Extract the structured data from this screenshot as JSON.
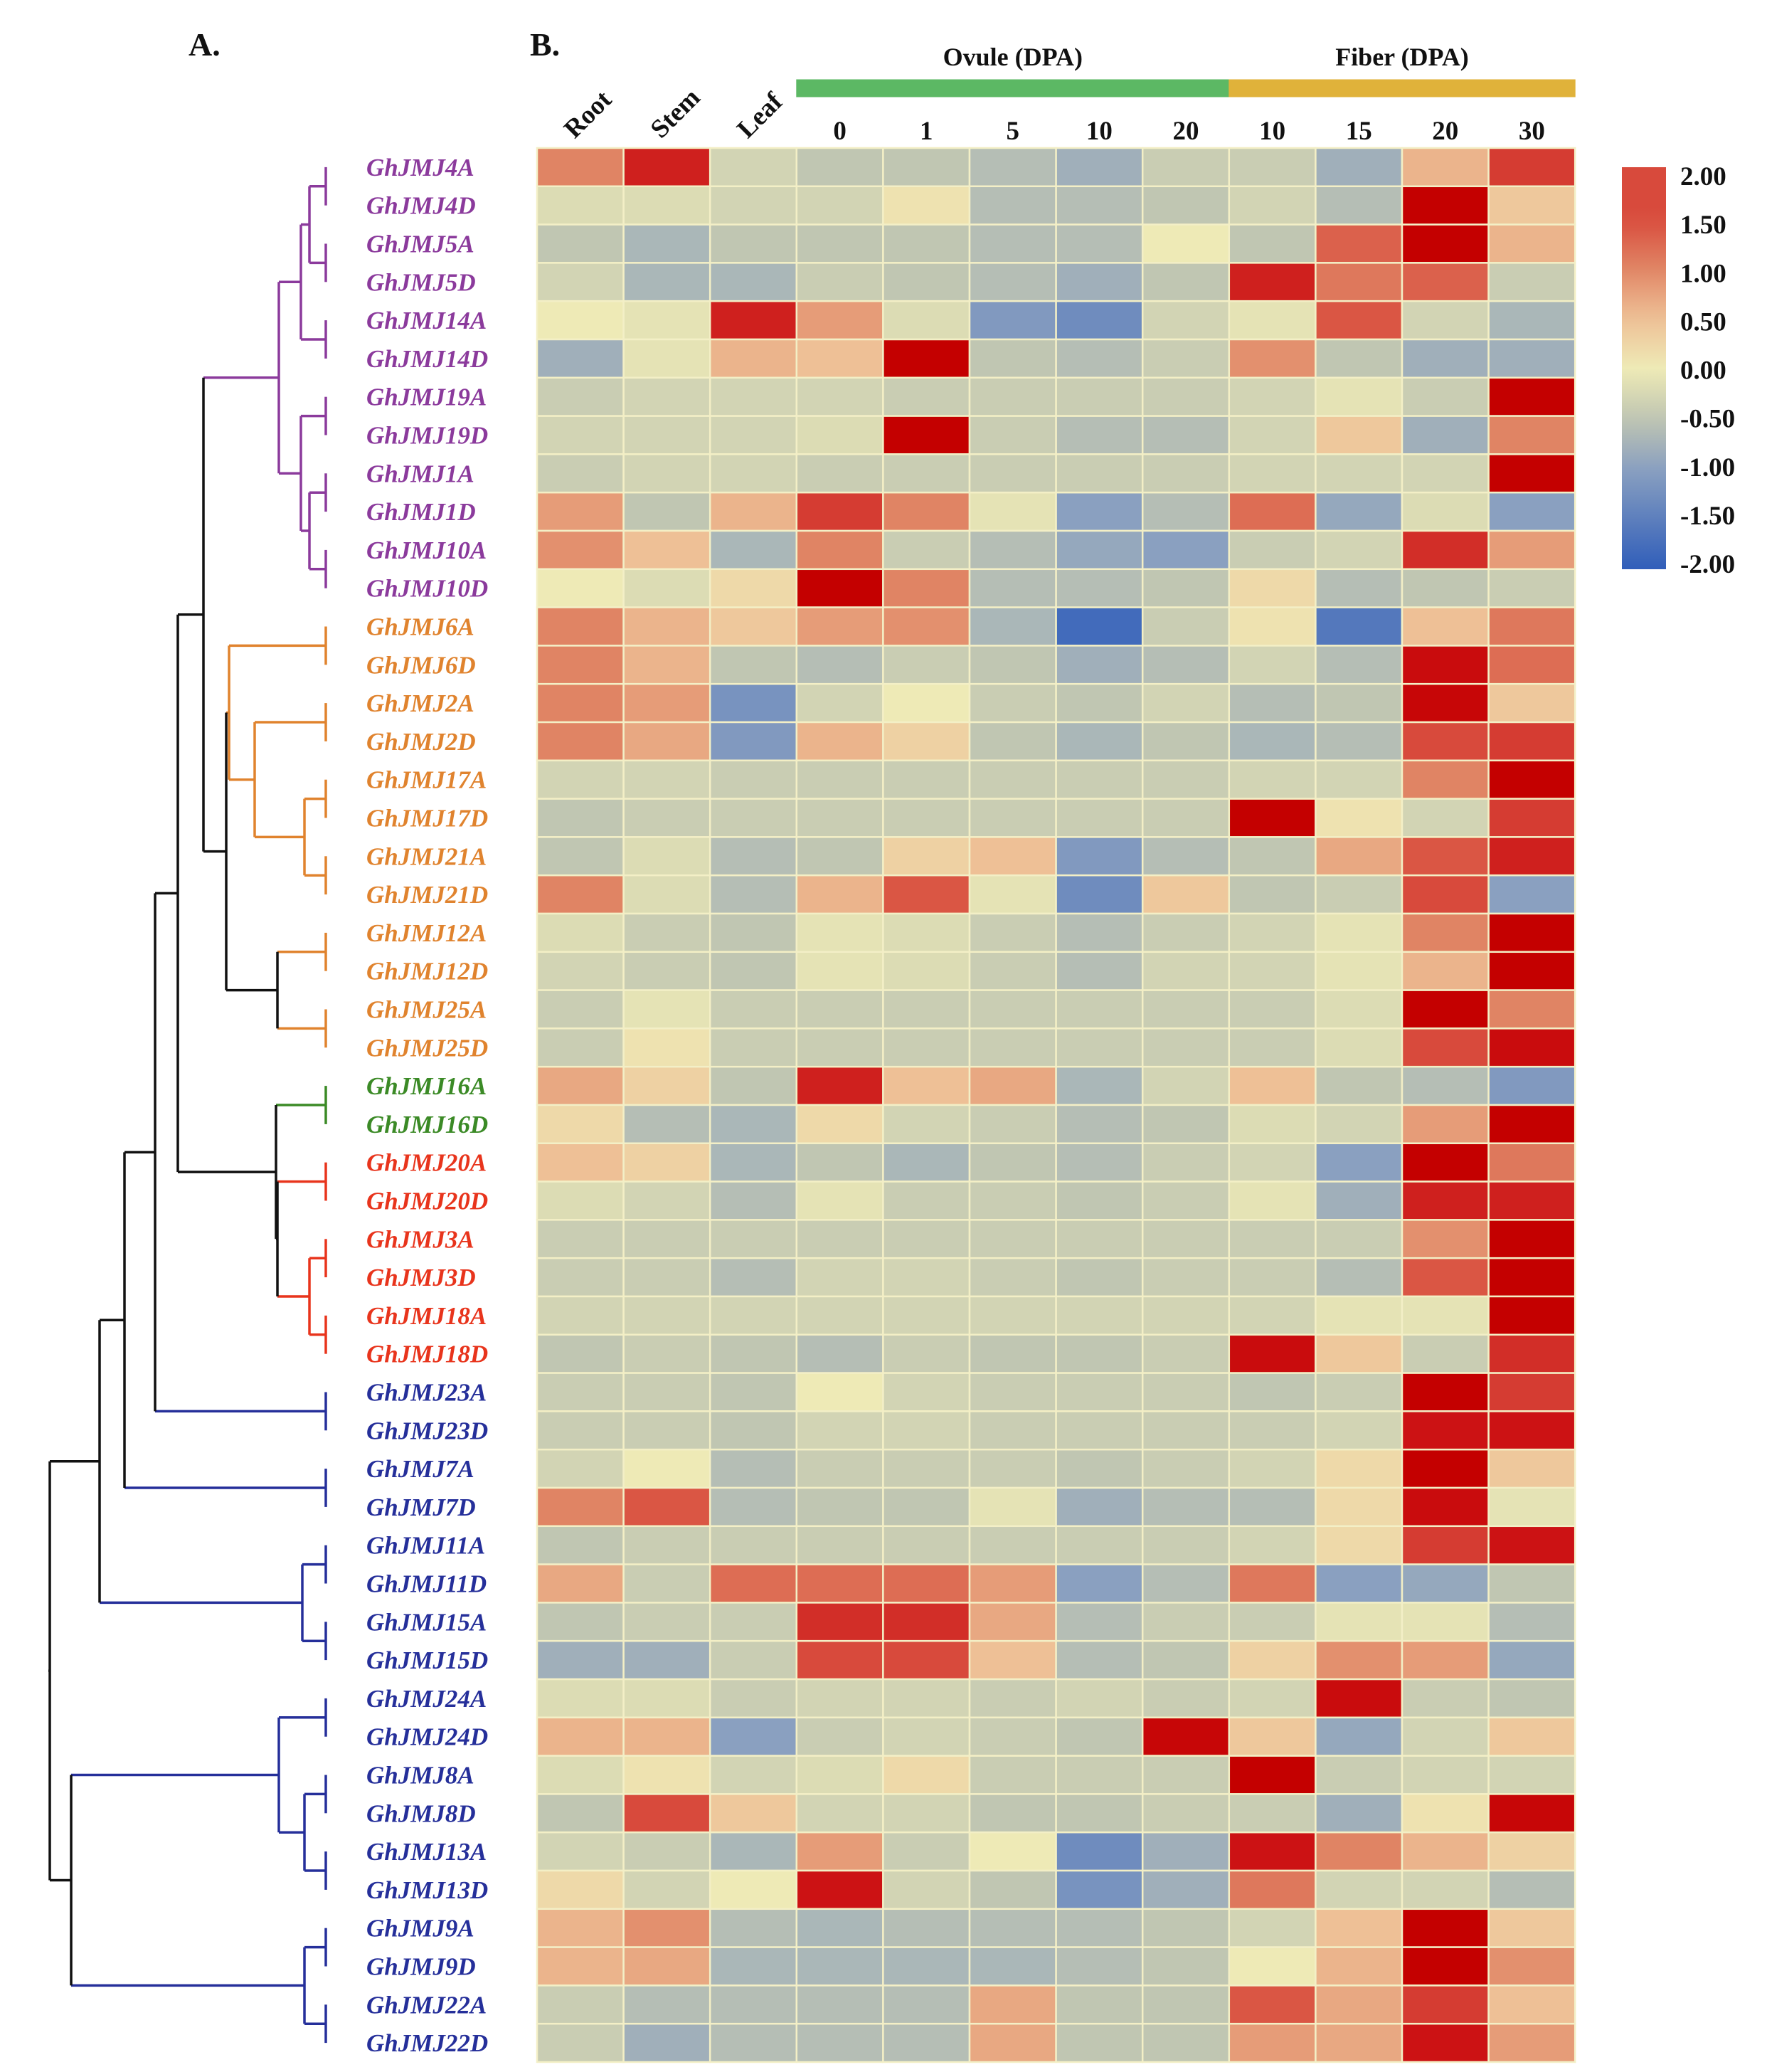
{
  "panel_labels": {
    "a": "A.",
    "b": "B."
  },
  "colors": {
    "purple": "#8b3a9c",
    "orange": "#e0832e",
    "green": "#3b8a26",
    "red": "#e8341c",
    "blue": "#252f9a",
    "black": "#111111",
    "ovule_bar": "#5cb864",
    "fiber_bar": "#e0b23a"
  },
  "chart_data": {
    "type": "heatmap",
    "title": "",
    "colorbar": {
      "min": -2.0,
      "max": 2.0,
      "ticks": [
        "2.00",
        "1.50",
        "1.00",
        "0.50",
        "0.00",
        "-0.50",
        "-1.00",
        "-1.50",
        "-2.00"
      ]
    },
    "column_groups": [
      {
        "label": "Ovule (DPA)",
        "start": 3,
        "end": 7
      },
      {
        "label": "Fiber (DPA)",
        "start": 8,
        "end": 11
      }
    ],
    "columns": [
      "Root",
      "Stem",
      "Leaf",
      "0",
      "1",
      "5",
      "10",
      "20",
      "10",
      "15",
      "20",
      "30"
    ],
    "rows": [
      {
        "gene": "GhJMJ4A",
        "clade": "purple",
        "values": [
          1.0,
          1.8,
          -0.3,
          -0.5,
          -0.5,
          -0.6,
          -0.8,
          -0.4,
          -0.4,
          -0.8,
          0.6,
          1.6
        ]
      },
      {
        "gene": "GhJMJ4D",
        "clade": "purple",
        "values": [
          -0.2,
          -0.2,
          -0.3,
          -0.3,
          0.1,
          -0.6,
          -0.6,
          -0.5,
          -0.3,
          -0.6,
          2.2,
          0.4
        ]
      },
      {
        "gene": "GhJMJ5A",
        "clade": "purple",
        "values": [
          -0.5,
          -0.7,
          -0.5,
          -0.5,
          -0.5,
          -0.6,
          -0.6,
          0.0,
          -0.5,
          1.3,
          2.2,
          0.6
        ]
      },
      {
        "gene": "GhJMJ5D",
        "clade": "purple",
        "values": [
          -0.3,
          -0.7,
          -0.7,
          -0.4,
          -0.5,
          -0.6,
          -0.8,
          -0.5,
          1.8,
          1.1,
          1.3,
          -0.4
        ]
      },
      {
        "gene": "GhJMJ14A",
        "clade": "purple",
        "values": [
          0.0,
          -0.1,
          1.8,
          0.8,
          -0.2,
          -1.1,
          -1.3,
          -0.3,
          -0.1,
          1.4,
          -0.3,
          -0.7
        ]
      },
      {
        "gene": "GhJMJ14D",
        "clade": "purple",
        "values": [
          -0.8,
          -0.1,
          0.6,
          0.5,
          2.2,
          -0.5,
          -0.6,
          -0.4,
          0.9,
          -0.5,
          -0.8,
          -0.8
        ]
      },
      {
        "gene": "GhJMJ19A",
        "clade": "purple",
        "values": [
          -0.4,
          -0.3,
          -0.3,
          -0.3,
          -0.4,
          -0.4,
          -0.4,
          -0.4,
          -0.3,
          -0.1,
          -0.4,
          2.2
        ]
      },
      {
        "gene": "GhJMJ19D",
        "clade": "purple",
        "values": [
          -0.3,
          -0.3,
          -0.3,
          -0.2,
          2.2,
          -0.4,
          -0.6,
          -0.6,
          -0.3,
          0.4,
          -0.8,
          1.0
        ]
      },
      {
        "gene": "GhJMJ1A",
        "clade": "purple",
        "values": [
          -0.4,
          -0.3,
          -0.3,
          -0.4,
          -0.4,
          -0.4,
          -0.4,
          -0.4,
          -0.3,
          -0.3,
          -0.3,
          2.2
        ]
      },
      {
        "gene": "GhJMJ1D",
        "clade": "purple",
        "values": [
          0.8,
          -0.5,
          0.6,
          1.6,
          1.0,
          -0.1,
          -1.0,
          -0.6,
          1.2,
          -0.9,
          -0.2,
          -1.0
        ]
      },
      {
        "gene": "GhJMJ10A",
        "clade": "purple",
        "values": [
          0.9,
          0.5,
          -0.7,
          1.0,
          -0.4,
          -0.6,
          -0.9,
          -1.0,
          -0.4,
          -0.3,
          1.7,
          0.8
        ]
      },
      {
        "gene": "GhJMJ10D",
        "clade": "purple",
        "values": [
          0.0,
          -0.2,
          0.2,
          2.2,
          1.0,
          -0.6,
          -0.6,
          -0.5,
          0.2,
          -0.6,
          -0.5,
          -0.4
        ]
      },
      {
        "gene": "GhJMJ6A",
        "clade": "orange",
        "values": [
          1.0,
          0.6,
          0.4,
          0.8,
          0.9,
          -0.7,
          -1.8,
          -0.4,
          0.1,
          -1.6,
          0.5,
          1.1
        ]
      },
      {
        "gene": "GhJMJ6D",
        "clade": "orange",
        "values": [
          1.0,
          0.6,
          -0.5,
          -0.6,
          -0.4,
          -0.5,
          -0.8,
          -0.6,
          -0.3,
          -0.6,
          2.0,
          1.2
        ]
      },
      {
        "gene": "GhJMJ2A",
        "clade": "orange",
        "values": [
          1.0,
          0.8,
          -1.2,
          -0.3,
          0.0,
          -0.4,
          -0.5,
          -0.3,
          -0.6,
          -0.5,
          2.1,
          0.4
        ]
      },
      {
        "gene": "GhJMJ2D",
        "clade": "orange",
        "values": [
          1.0,
          0.7,
          -1.1,
          0.6,
          0.3,
          -0.5,
          -0.7,
          -0.5,
          -0.7,
          -0.6,
          1.5,
          1.6
        ]
      },
      {
        "gene": "GhJMJ17A",
        "clade": "orange",
        "values": [
          -0.3,
          -0.3,
          -0.4,
          -0.4,
          -0.4,
          -0.4,
          -0.4,
          -0.4,
          -0.3,
          -0.3,
          1.0,
          2.2
        ]
      },
      {
        "gene": "GhJMJ17D",
        "clade": "orange",
        "values": [
          -0.5,
          -0.4,
          -0.4,
          -0.4,
          -0.4,
          -0.4,
          -0.4,
          -0.4,
          2.2,
          0.1,
          -0.3,
          1.6
        ]
      },
      {
        "gene": "GhJMJ21A",
        "clade": "orange",
        "values": [
          -0.5,
          -0.2,
          -0.6,
          -0.5,
          0.3,
          0.5,
          -1.1,
          -0.6,
          -0.5,
          0.7,
          1.4,
          1.8
        ]
      },
      {
        "gene": "GhJMJ21D",
        "clade": "orange",
        "values": [
          1.0,
          -0.2,
          -0.6,
          0.6,
          1.4,
          -0.1,
          -1.3,
          0.4,
          -0.5,
          -0.4,
          1.5,
          -1.0
        ]
      },
      {
        "gene": "GhJMJ12A",
        "clade": "orange",
        "values": [
          -0.2,
          -0.4,
          -0.5,
          -0.1,
          -0.2,
          -0.4,
          -0.6,
          -0.4,
          -0.3,
          -0.1,
          1.0,
          2.2
        ]
      },
      {
        "gene": "GhJMJ12D",
        "clade": "orange",
        "values": [
          -0.3,
          -0.4,
          -0.5,
          -0.1,
          -0.2,
          -0.4,
          -0.6,
          -0.3,
          -0.3,
          -0.1,
          0.6,
          2.2
        ]
      },
      {
        "gene": "GhJMJ25A",
        "clade": "orange",
        "values": [
          -0.4,
          -0.1,
          -0.4,
          -0.4,
          -0.4,
          -0.4,
          -0.4,
          -0.4,
          -0.4,
          -0.2,
          2.2,
          1.0
        ]
      },
      {
        "gene": "GhJMJ25D",
        "clade": "orange",
        "values": [
          -0.4,
          0.1,
          -0.4,
          -0.4,
          -0.4,
          -0.4,
          -0.4,
          -0.4,
          -0.4,
          -0.2,
          1.5,
          2.0
        ]
      },
      {
        "gene": "GhJMJ16A",
        "clade": "green",
        "values": [
          0.7,
          0.3,
          -0.5,
          1.8,
          0.5,
          0.7,
          -0.7,
          -0.3,
          0.5,
          -0.5,
          -0.6,
          -1.1
        ]
      },
      {
        "gene": "GhJMJ16D",
        "clade": "green",
        "values": [
          0.2,
          -0.6,
          -0.7,
          0.2,
          -0.3,
          -0.4,
          -0.6,
          -0.5,
          -0.2,
          -0.3,
          0.8,
          2.2
        ]
      },
      {
        "gene": "GhJMJ20A",
        "clade": "red",
        "values": [
          0.5,
          0.3,
          -0.7,
          -0.5,
          -0.7,
          -0.5,
          -0.6,
          -0.4,
          -0.3,
          -1.0,
          2.2,
          1.1
        ]
      },
      {
        "gene": "GhJMJ20D",
        "clade": "red",
        "values": [
          -0.2,
          -0.3,
          -0.6,
          -0.1,
          -0.4,
          -0.4,
          -0.5,
          -0.4,
          -0.1,
          -0.8,
          1.8,
          1.8
        ]
      },
      {
        "gene": "GhJMJ3A",
        "clade": "red",
        "values": [
          -0.4,
          -0.4,
          -0.4,
          -0.4,
          -0.4,
          -0.4,
          -0.4,
          -0.4,
          -0.4,
          -0.4,
          0.9,
          2.2
        ]
      },
      {
        "gene": "GhJMJ3D",
        "clade": "red",
        "values": [
          -0.4,
          -0.4,
          -0.6,
          -0.3,
          -0.3,
          -0.4,
          -0.5,
          -0.4,
          -0.4,
          -0.6,
          1.4,
          2.2
        ]
      },
      {
        "gene": "GhJMJ18A",
        "clade": "red",
        "values": [
          -0.3,
          -0.3,
          -0.3,
          -0.3,
          -0.3,
          -0.3,
          -0.3,
          -0.3,
          -0.3,
          -0.1,
          -0.1,
          2.2
        ]
      },
      {
        "gene": "GhJMJ18D",
        "clade": "red",
        "values": [
          -0.5,
          -0.4,
          -0.5,
          -0.6,
          -0.4,
          -0.5,
          -0.5,
          -0.4,
          2.0,
          0.4,
          -0.4,
          1.7
        ]
      },
      {
        "gene": "GhJMJ23A",
        "clade": "blue",
        "values": [
          -0.4,
          -0.4,
          -0.5,
          0.0,
          -0.3,
          -0.4,
          -0.4,
          -0.4,
          -0.5,
          -0.4,
          2.2,
          1.6
        ]
      },
      {
        "gene": "GhJMJ23D",
        "clade": "blue",
        "values": [
          -0.4,
          -0.4,
          -0.5,
          -0.3,
          -0.3,
          -0.4,
          -0.4,
          -0.4,
          -0.4,
          -0.3,
          1.9,
          1.9
        ]
      },
      {
        "gene": "GhJMJ7A",
        "clade": "blue",
        "values": [
          -0.3,
          0.0,
          -0.6,
          -0.4,
          -0.4,
          -0.4,
          -0.5,
          -0.4,
          -0.3,
          0.2,
          2.2,
          0.4
        ]
      },
      {
        "gene": "GhJMJ7D",
        "clade": "blue",
        "values": [
          1.0,
          1.4,
          -0.6,
          -0.5,
          -0.5,
          -0.1,
          -0.8,
          -0.6,
          -0.6,
          0.2,
          2.0,
          -0.1
        ]
      },
      {
        "gene": "GhJMJ11A",
        "clade": "blue",
        "values": [
          -0.5,
          -0.4,
          -0.4,
          -0.4,
          -0.4,
          -0.4,
          -0.4,
          -0.4,
          -0.3,
          0.2,
          1.6,
          1.9
        ]
      },
      {
        "gene": "GhJMJ11D",
        "clade": "blue",
        "values": [
          0.7,
          -0.4,
          1.2,
          1.2,
          1.2,
          0.8,
          -1.0,
          -0.6,
          1.1,
          -1.0,
          -0.9,
          -0.5
        ]
      },
      {
        "gene": "GhJMJ15A",
        "clade": "blue",
        "values": [
          -0.5,
          -0.4,
          -0.4,
          1.7,
          1.7,
          0.7,
          -0.6,
          -0.4,
          -0.4,
          -0.1,
          -0.1,
          -0.6
        ]
      },
      {
        "gene": "GhJMJ15D",
        "clade": "blue",
        "values": [
          -0.8,
          -0.8,
          -0.4,
          1.5,
          1.5,
          0.5,
          -0.6,
          -0.5,
          0.3,
          0.9,
          0.8,
          -0.9
        ]
      },
      {
        "gene": "GhJMJ24A",
        "clade": "blue",
        "values": [
          -0.2,
          -0.2,
          -0.4,
          -0.3,
          -0.3,
          -0.4,
          -0.3,
          -0.4,
          -0.3,
          2.0,
          -0.4,
          -0.5
        ]
      },
      {
        "gene": "GhJMJ24D",
        "clade": "blue",
        "values": [
          0.6,
          0.6,
          -1.0,
          -0.4,
          -0.3,
          -0.4,
          -0.5,
          2.1,
          0.4,
          -0.9,
          -0.3,
          0.4
        ]
      },
      {
        "gene": "GhJMJ8A",
        "clade": "blue",
        "values": [
          -0.2,
          0.1,
          -0.3,
          -0.2,
          0.2,
          -0.4,
          -0.4,
          -0.4,
          2.2,
          -0.4,
          -0.3,
          -0.3
        ]
      },
      {
        "gene": "GhJMJ8D",
        "clade": "blue",
        "values": [
          -0.5,
          1.5,
          0.4,
          -0.3,
          -0.3,
          -0.5,
          -0.5,
          -0.4,
          -0.4,
          -0.8,
          0.1,
          2.1
        ]
      },
      {
        "gene": "GhJMJ13A",
        "clade": "blue",
        "values": [
          -0.3,
          -0.4,
          -0.7,
          0.8,
          -0.4,
          0.0,
          -1.3,
          -0.8,
          1.9,
          1.0,
          0.6,
          0.3
        ]
      },
      {
        "gene": "GhJMJ13D",
        "clade": "blue",
        "values": [
          0.2,
          -0.3,
          0.0,
          1.9,
          -0.3,
          -0.5,
          -1.2,
          -0.8,
          1.1,
          -0.3,
          -0.3,
          -0.6
        ]
      },
      {
        "gene": "GhJMJ9A",
        "clade": "blue",
        "values": [
          0.6,
          0.9,
          -0.6,
          -0.7,
          -0.6,
          -0.6,
          -0.6,
          -0.5,
          -0.3,
          0.5,
          2.2,
          0.4
        ]
      },
      {
        "gene": "GhJMJ9D",
        "clade": "blue",
        "values": [
          0.6,
          0.7,
          -0.7,
          -0.7,
          -0.7,
          -0.7,
          -0.6,
          -0.5,
          0.0,
          0.6,
          2.2,
          0.9
        ]
      },
      {
        "gene": "GhJMJ22A",
        "clade": "blue",
        "values": [
          -0.4,
          -0.6,
          -0.6,
          -0.6,
          -0.6,
          0.7,
          -0.5,
          -0.5,
          1.4,
          0.7,
          1.6,
          0.5
        ]
      },
      {
        "gene": "GhJMJ22D",
        "clade": "blue",
        "values": [
          -0.4,
          -0.8,
          -0.6,
          -0.6,
          -0.6,
          0.7,
          -0.5,
          -0.5,
          0.8,
          0.7,
          1.9,
          0.8
        ]
      }
    ]
  }
}
